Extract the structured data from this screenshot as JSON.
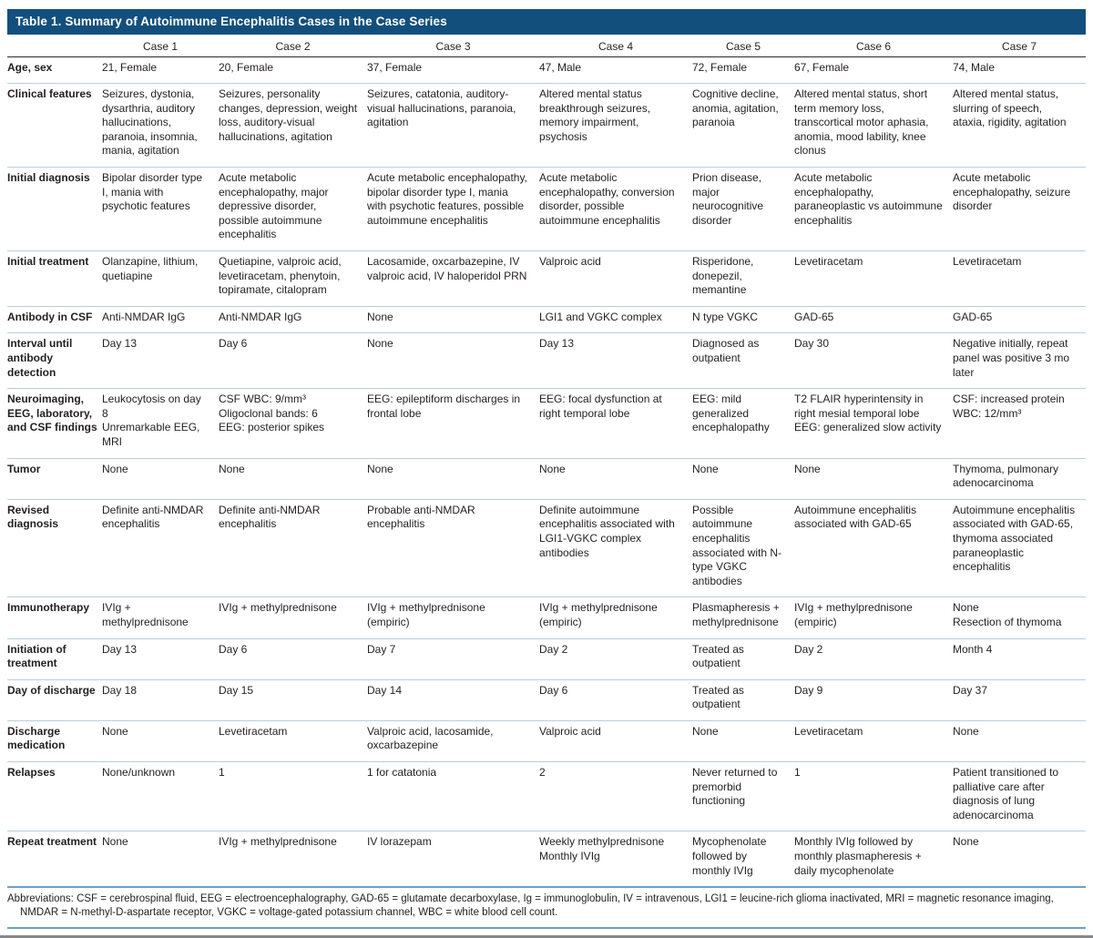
{
  "colors": {
    "titlebar_bg": "#124f7d",
    "titlebar_fg": "#ffffff",
    "row_line": "#b7cee0",
    "section_line": "#6f9fc4",
    "bottom_line": "#87898c"
  },
  "table": {
    "title": "Table 1. Summary of Autoimmune Encephalitis Cases in the Case Series",
    "case_headers": [
      "",
      "Case 1",
      "Case 2",
      "Case 3",
      "Case 4",
      "Case 5",
      "Case 6",
      "Case 7"
    ],
    "rows": [
      {
        "label": "Age, sex",
        "cells": [
          "21, Female",
          "20, Female",
          "37, Female",
          "47, Male",
          "72, Female",
          "67, Female",
          "74, Male"
        ]
      },
      {
        "label": "Clinical features",
        "cells": [
          "Seizures, dystonia, dysarthria, auditory hallucinations, paranoia, insomnia, mania, agitation",
          "Seizures, personality changes, depression, weight loss, auditory-visual hallucinations, agitation",
          "Seizures, catatonia, auditory-visual hallucinations, paranoia, agitation",
          "Altered mental status breakthrough seizures, memory impairment, psychosis",
          "Cognitive decline, anomia, agitation, paranoia",
          "Altered mental status, short term memory loss, transcortical motor aphasia, anomia, mood lability, knee clonus",
          "Altered mental status, slurring of speech, ataxia, rigidity, agitation"
        ]
      },
      {
        "label": "Initial diagnosis",
        "cells": [
          "Bipolar disorder type I, mania with psychotic features",
          "Acute metabolic encephalopathy, major depressive disorder, possible autoimmune encephalitis",
          "Acute metabolic encephalopathy, bipolar disorder type I, mania with psychotic features, possible autoimmune encephalitis",
          "Acute metabolic encephalopathy, conversion disorder, possible autoimmune encephalitis",
          "Prion disease, major neurocognitive disorder",
          "Acute metabolic encephalopathy, paraneoplastic vs autoimmune encephalitis",
          "Acute metabolic encephalopathy, seizure disorder"
        ]
      },
      {
        "label": "Initial treatment",
        "cells": [
          "Olanzapine, lithium, quetiapine",
          "Quetiapine, valproic acid, levetiracetam, phenytoin, topiramate, citalopram",
          "Lacosamide, oxcarbazepine, IV valproic acid, IV haloperidol PRN",
          "Valproic acid",
          "Risperidone, donepezil, memantine",
          "Levetiracetam",
          "Levetiracetam"
        ]
      },
      {
        "label": "Antibody in CSF",
        "cells": [
          "Anti-NMDAR IgG",
          "Anti-NMDAR IgG",
          "None",
          "LGI1 and VGKC complex",
          "N type VGKC",
          "GAD-65",
          "GAD-65"
        ]
      },
      {
        "label": "Interval until antibody detection",
        "cells": [
          "Day 13",
          "Day 6",
          "None",
          "Day 13",
          "Diagnosed as outpatient",
          "Day 30",
          "Negative initially, repeat panel was positive 3 mo later"
        ]
      },
      {
        "label": "Neuroimaging, EEG, laboratory, and CSF findings",
        "cells": [
          "Leukocytosis on day 8\nUnremarkable EEG, MRI",
          "CSF WBC: 9/mm³\nOligoclonal bands: 6\nEEG: posterior spikes",
          "EEG: epileptiform discharges in frontal lobe",
          "EEG: focal dysfunction at right temporal lobe",
          "EEG: mild generalized encephalopathy",
          "T2 FLAIR hyperintensity in right mesial temporal lobe\nEEG: generalized slow activity",
          "CSF: increased protein\nWBC: 12/mm³"
        ]
      },
      {
        "label": "Tumor",
        "cells": [
          "None",
          "None",
          "None",
          "None",
          "None",
          "None",
          "Thymoma, pulmonary adenocarcinoma"
        ]
      },
      {
        "label": "Revised diagnosis",
        "cells": [
          "Definite anti-NMDAR encephalitis",
          "Definite anti-NMDAR encephalitis",
          "Probable anti-NMDAR encephalitis",
          "Definite autoimmune encephalitis associated with LGI1-VGKC complex antibodies",
          "Possible autoimmune encephalitis associated with N-type VGKC antibodies",
          "Autoimmune encephalitis associated with GAD-65",
          "Autoimmune encephalitis associated with GAD-65, thymoma associated paraneoplastic encephalitis"
        ]
      },
      {
        "label": "Immunotherapy",
        "cells": [
          "IVIg + methylprednisone",
          "IVIg + methylprednisone",
          "IVIg + methylprednisone (empiric)",
          "IVIg + methylprednisone (empiric)",
          "Plasmapheresis + methylprednisone",
          "IVIg + methylprednisone (empiric)",
          "None\nResection of thymoma"
        ]
      },
      {
        "label": "Initiation of treatment",
        "cells": [
          "Day 13",
          "Day 6",
          "Day 7",
          "Day 2",
          "Treated as outpatient",
          "Day 2",
          "Month 4"
        ]
      },
      {
        "label": "Day of discharge",
        "cells": [
          "Day 18",
          "Day 15",
          "Day 14",
          "Day 6",
          "Treated as outpatient",
          "Day 9",
          "Day 37"
        ]
      },
      {
        "label": "Discharge medication",
        "cells": [
          "None",
          "Levetiracetam",
          "Valproic acid, lacosamide, oxcarbazepine",
          "Valproic acid",
          "None",
          "Levetiracetam",
          "None"
        ]
      },
      {
        "label": "Relapses",
        "cells": [
          "None/unknown",
          "1",
          "1 for catatonia",
          "2",
          "Never returned to premorbid functioning",
          "1",
          "Patient transitioned to palliative care after diagnosis of lung adenocarcinoma"
        ]
      },
      {
        "label": "Repeat treatment",
        "cells": [
          "None",
          "IVIg + methylprednisone",
          "IV lorazepam",
          "Weekly methylprednisone\nMonthly IVIg",
          "Mycophenolate followed by monthly IVIg",
          "Monthly IVIg followed by monthly plasmapheresis + daily mycophenolate",
          "None"
        ]
      }
    ],
    "footnote": "Abbreviations: CSF = cerebrospinal fluid, EEG = electroencephalography, GAD-65 = glutamate decarboxylase, Ig = immunoglobulin, IV = intravenous, LGI1 = leucine-rich glioma inactivated, MRI = magnetic resonance imaging, NMDAR = N-methyl-D-aspartate receptor, VGKC = voltage-gated potassium channel, WBC = white blood cell count."
  }
}
